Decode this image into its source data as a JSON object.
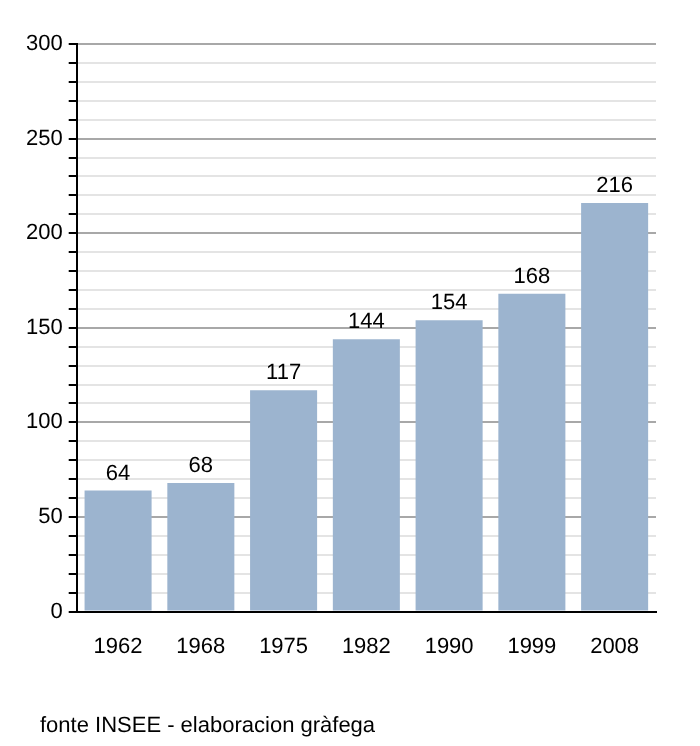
{
  "chart_data": {
    "type": "bar",
    "categories": [
      "1962",
      "1968",
      "1975",
      "1982",
      "1990",
      "1999",
      "2008"
    ],
    "values": [
      64,
      68,
      117,
      144,
      154,
      168,
      216
    ],
    "color": "#9cb4cf",
    "data_labels": true,
    "grid": "y",
    "ylim": [
      0,
      300
    ],
    "yticks": [
      0,
      {
        "value": 10,
        "label": null
      },
      {
        "value": 20,
        "label": null
      },
      {
        "value": 30,
        "label": null
      },
      {
        "value": 40,
        "label": null
      },
      50,
      {
        "value": 60,
        "label": null
      },
      {
        "value": 70,
        "label": null
      },
      {
        "value": 80,
        "label": null
      },
      {
        "value": 90,
        "label": null
      },
      100,
      {
        "value": 110,
        "label": null
      },
      {
        "value": 120,
        "label": null
      },
      {
        "value": 130,
        "label": null
      },
      {
        "value": 140,
        "label": null
      },
      150,
      {
        "value": 160,
        "label": null
      },
      {
        "value": 170,
        "label": null
      },
      {
        "value": 180,
        "label": null
      },
      {
        "value": 190,
        "label": null
      },
      200,
      {
        "value": 210,
        "label": null
      },
      {
        "value": 220,
        "label": null
      },
      {
        "value": 230,
        "label": null
      },
      {
        "value": 240,
        "label": null
      },
      250,
      {
        "value": 260,
        "label": null
      },
      {
        "value": 270,
        "label": null
      },
      {
        "value": 280,
        "label": null
      },
      {
        "value": 290,
        "label": null
      },
      300
    ],
    "annotations": [
      "fonte INSEE - elaboracion gràfega"
    ]
  }
}
